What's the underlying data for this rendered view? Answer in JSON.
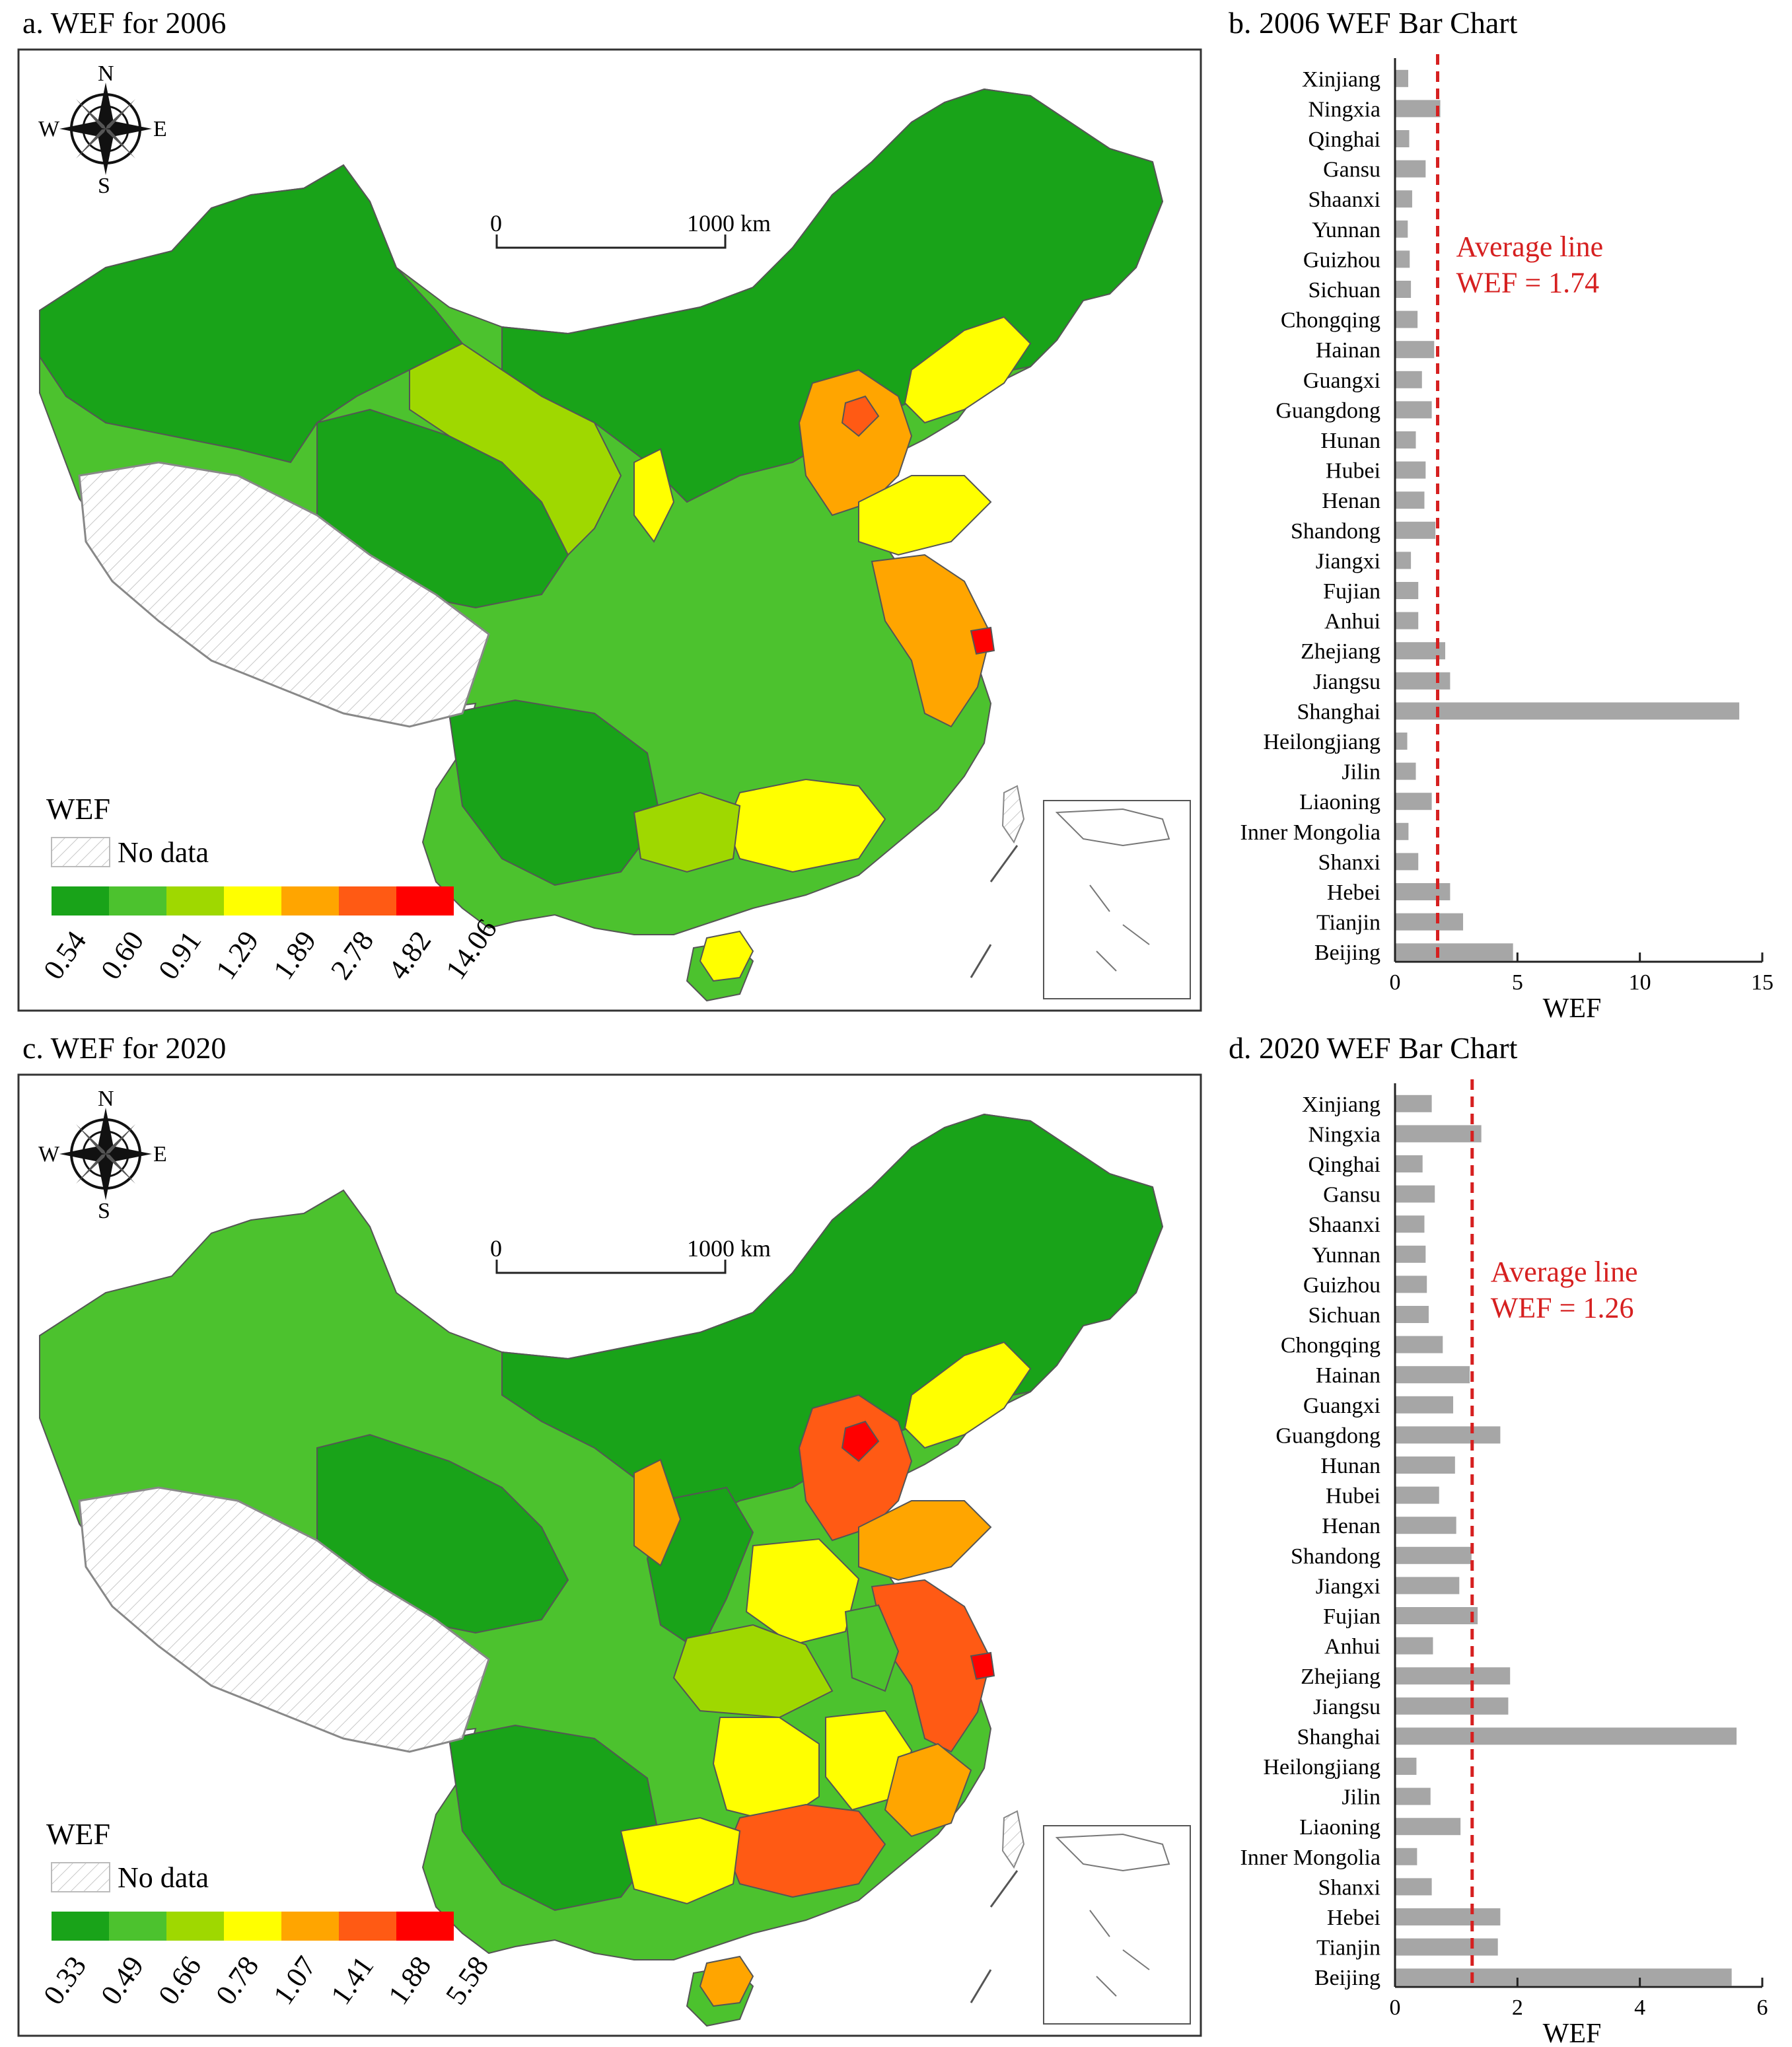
{
  "panels": {
    "a": {
      "title": "a. WEF for 2006"
    },
    "b": {
      "title": "b. 2006 WEF Bar Chart"
    },
    "c": {
      "title": "c. WEF for 2020"
    },
    "d": {
      "title": "d. 2020 WEF Bar Chart"
    }
  },
  "map_common": {
    "compass": {
      "n": "N",
      "s": "S",
      "w": "W",
      "e": "E"
    },
    "scale_bar": {
      "start": "0",
      "end": "1000 km"
    },
    "legend_title": "WEF",
    "no_data_label": "No data"
  },
  "map_legends": {
    "a": {
      "breaks": [
        "0.54",
        "0.60",
        "0.91",
        "1.29",
        "1.89",
        "2.78",
        "4.82",
        "14.06"
      ]
    },
    "c": {
      "breaks": [
        "0.33",
        "0.49",
        "0.66",
        "0.78",
        "1.07",
        "1.41",
        "1.88",
        "5.58"
      ]
    }
  },
  "legend_colors": [
    "#19a319",
    "#4cc22e",
    "#9fd800",
    "#ffff00",
    "#ffa500",
    "#ff5a14",
    "#ff0000"
  ],
  "colors": {
    "bar": "#a6a6a6",
    "average_line": "#d62020",
    "no_data_hatch": "#c8c8c8"
  },
  "chart_data": [
    {
      "type": "bar",
      "orientation": "horizontal",
      "title": "b. 2006 WEF Bar Chart",
      "xlabel": "WEF",
      "xlim": [
        0,
        15
      ],
      "xticks": [
        0,
        5,
        10,
        15
      ],
      "categories": [
        "Xinjiang",
        "Ningxia",
        "Qinghai",
        "Gansu",
        "Shaanxi",
        "Yunnan",
        "Guizhou",
        "Sichuan",
        "Chongqing",
        "Hainan",
        "Guangxi",
        "Guangdong",
        "Hunan",
        "Hubei",
        "Henan",
        "Shandong",
        "Jiangxi",
        "Fujian",
        "Anhui",
        "Zhejiang",
        "Jiangsu",
        "Shanghai",
        "Heilongjiang",
        "Jilin",
        "Liaoning",
        "Inner Mongolia",
        "Shanxi",
        "Hebei",
        "Tianjin",
        "Beijing"
      ],
      "values": [
        0.54,
        1.85,
        0.58,
        1.25,
        0.7,
        0.52,
        0.6,
        0.65,
        0.92,
        1.6,
        1.1,
        1.5,
        0.85,
        1.25,
        1.2,
        1.65,
        0.65,
        0.95,
        0.95,
        2.05,
        2.25,
        14.06,
        0.5,
        0.85,
        1.5,
        0.55,
        0.95,
        2.25,
        2.78,
        4.82
      ],
      "average": {
        "label": "Average line",
        "text": "WEF = 1.74",
        "value": 1.74
      }
    },
    {
      "type": "bar",
      "orientation": "horizontal",
      "title": "d. 2020 WEF Bar Chart",
      "xlabel": "WEF",
      "xlim": [
        0,
        6
      ],
      "xticks": [
        0,
        2,
        4,
        6
      ],
      "categories": [
        "Xinjiang",
        "Ningxia",
        "Qinghai",
        "Gansu",
        "Shaanxi",
        "Yunnan",
        "Guizhou",
        "Sichuan",
        "Chongqing",
        "Hainan",
        "Guangxi",
        "Guangdong",
        "Hunan",
        "Hubei",
        "Henan",
        "Shandong",
        "Jiangxi",
        "Fujian",
        "Anhui",
        "Zhejiang",
        "Jiangsu",
        "Shanghai",
        "Heilongjiang",
        "Jilin",
        "Liaoning",
        "Inner Mongolia",
        "Shanxi",
        "Hebei",
        "Tianjin",
        "Beijing"
      ],
      "values": [
        0.6,
        1.41,
        0.45,
        0.65,
        0.48,
        0.5,
        0.52,
        0.55,
        0.78,
        1.22,
        0.95,
        1.72,
        0.98,
        0.72,
        1.0,
        1.25,
        1.05,
        1.35,
        0.62,
        1.88,
        1.85,
        5.58,
        0.35,
        0.58,
        1.07,
        0.36,
        0.6,
        1.72,
        1.68,
        5.5
      ],
      "average": {
        "label": "Average line",
        "text": "WEF = 1.26",
        "value": 1.26
      }
    }
  ]
}
